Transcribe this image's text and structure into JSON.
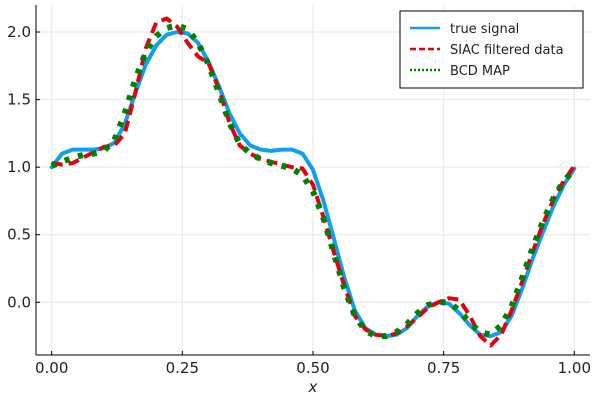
{
  "chart_data": {
    "type": "line",
    "xlabel": "x",
    "ylabel": "",
    "xlim": [
      -0.03,
      1.03
    ],
    "ylim": [
      -0.39,
      2.2
    ],
    "xticks": [
      {
        "value": 0.0,
        "label": "0.00"
      },
      {
        "value": 0.25,
        "label": "0.25"
      },
      {
        "value": 0.5,
        "label": "0.50"
      },
      {
        "value": 0.75,
        "label": "0.75"
      },
      {
        "value": 1.0,
        "label": "1.00"
      }
    ],
    "yticks": [
      {
        "value": 0.0,
        "label": "0.0"
      },
      {
        "value": 0.5,
        "label": "0.5"
      },
      {
        "value": 1.0,
        "label": "1.0"
      },
      {
        "value": 1.5,
        "label": "1.5"
      },
      {
        "value": 2.0,
        "label": "2.0"
      }
    ],
    "grid": true,
    "legend_position": "top-right",
    "series": [
      {
        "name": "true signal",
        "color": "#0d9ff0",
        "style": "solid",
        "x": [
          0.0,
          0.02,
          0.04,
          0.06,
          0.08,
          0.1,
          0.12,
          0.14,
          0.16,
          0.18,
          0.2,
          0.22,
          0.24,
          0.26,
          0.28,
          0.3,
          0.32,
          0.34,
          0.36,
          0.38,
          0.4,
          0.42,
          0.44,
          0.46,
          0.48,
          0.5,
          0.52,
          0.54,
          0.56,
          0.58,
          0.6,
          0.62,
          0.64,
          0.66,
          0.68,
          0.7,
          0.72,
          0.74,
          0.76,
          0.78,
          0.8,
          0.82,
          0.84,
          0.86,
          0.88,
          0.9,
          0.92,
          0.94,
          0.96,
          0.98,
          1.0
        ],
        "y": [
          1.0,
          1.1,
          1.13,
          1.13,
          1.13,
          1.14,
          1.18,
          1.32,
          1.55,
          1.76,
          1.9,
          1.98,
          2.0,
          1.99,
          1.92,
          1.78,
          1.6,
          1.4,
          1.25,
          1.16,
          1.13,
          1.12,
          1.13,
          1.13,
          1.1,
          0.98,
          0.75,
          0.47,
          0.18,
          -0.06,
          -0.19,
          -0.24,
          -0.25,
          -0.24,
          -0.19,
          -0.1,
          -0.03,
          0.0,
          -0.01,
          -0.08,
          -0.17,
          -0.24,
          -0.25,
          -0.22,
          -0.1,
          0.1,
          0.32,
          0.52,
          0.71,
          0.87,
          0.99
        ]
      },
      {
        "name": "SIAC filtered data",
        "color": "#e4000a",
        "style": "dashed",
        "x": [
          0.0,
          0.02,
          0.04,
          0.06,
          0.08,
          0.1,
          0.12,
          0.14,
          0.16,
          0.18,
          0.2,
          0.22,
          0.24,
          0.26,
          0.28,
          0.3,
          0.32,
          0.34,
          0.36,
          0.38,
          0.4,
          0.42,
          0.44,
          0.46,
          0.48,
          0.5,
          0.52,
          0.54,
          0.56,
          0.58,
          0.6,
          0.62,
          0.64,
          0.66,
          0.68,
          0.7,
          0.72,
          0.74,
          0.76,
          0.78,
          0.8,
          0.82,
          0.84,
          0.86,
          0.88,
          0.9,
          0.92,
          0.94,
          0.96,
          0.98,
          1.0
        ],
        "y": [
          1.03,
          1.02,
          1.03,
          1.07,
          1.11,
          1.15,
          1.16,
          1.25,
          1.55,
          1.88,
          2.07,
          2.1,
          2.04,
          1.92,
          1.82,
          1.77,
          1.58,
          1.33,
          1.16,
          1.1,
          1.06,
          1.04,
          1.02,
          1.0,
          0.99,
          0.87,
          0.63,
          0.37,
          0.12,
          -0.1,
          -0.2,
          -0.24,
          -0.25,
          -0.23,
          -0.18,
          -0.11,
          -0.04,
          0.0,
          0.03,
          0.02,
          -0.1,
          -0.25,
          -0.32,
          -0.24,
          -0.06,
          0.15,
          0.37,
          0.58,
          0.76,
          0.9,
          1.01
        ]
      },
      {
        "name": "BCD MAP",
        "color": "#008000",
        "style": "dotted",
        "x": [
          0.0,
          0.02,
          0.04,
          0.06,
          0.08,
          0.1,
          0.12,
          0.14,
          0.16,
          0.18,
          0.2,
          0.22,
          0.24,
          0.26,
          0.28,
          0.3,
          0.32,
          0.34,
          0.36,
          0.38,
          0.4,
          0.42,
          0.44,
          0.46,
          0.48,
          0.5,
          0.52,
          0.54,
          0.56,
          0.58,
          0.6,
          0.62,
          0.64,
          0.66,
          0.68,
          0.7,
          0.72,
          0.74,
          0.76,
          0.78,
          0.8,
          0.82,
          0.84,
          0.86,
          0.88,
          0.9,
          0.92,
          0.94,
          0.96,
          0.98,
          1.0
        ],
        "y": [
          1.01,
          1.04,
          1.07,
          1.09,
          1.1,
          1.12,
          1.2,
          1.4,
          1.65,
          1.85,
          1.97,
          2.03,
          2.05,
          2.02,
          1.92,
          1.76,
          1.55,
          1.33,
          1.17,
          1.1,
          1.06,
          1.03,
          1.01,
          0.99,
          0.94,
          0.82,
          0.62,
          0.36,
          0.1,
          -0.1,
          -0.21,
          -0.25,
          -0.25,
          -0.22,
          -0.16,
          -0.08,
          -0.02,
          0.0,
          0.0,
          -0.06,
          -0.15,
          -0.22,
          -0.24,
          -0.17,
          -0.03,
          0.18,
          0.4,
          0.6,
          0.77,
          0.9,
          0.98
        ]
      }
    ]
  }
}
